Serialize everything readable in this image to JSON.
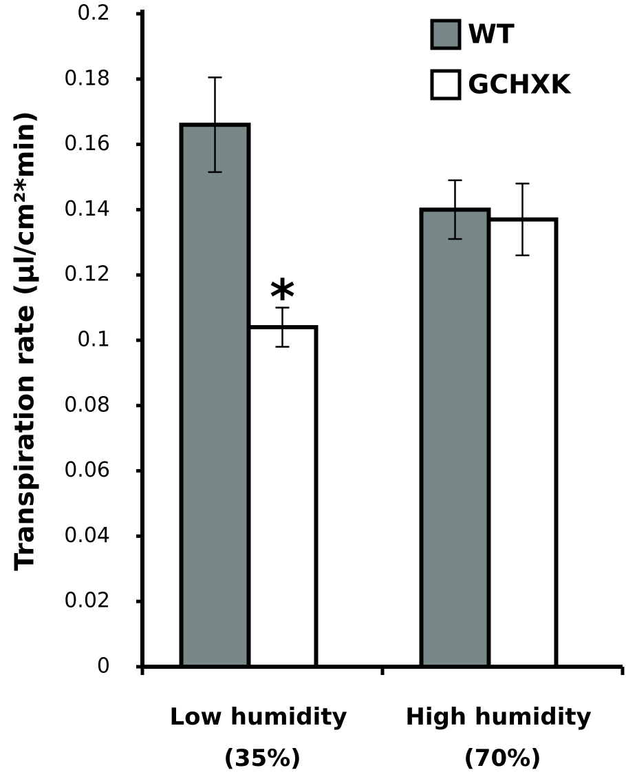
{
  "chart_data": {
    "type": "bar",
    "y_label": "Transpiration rate (μl/cm²*min)",
    "categories": [
      "Low humidity (35%)",
      "High humidity (70%)"
    ],
    "series": [
      {
        "name": "WT",
        "color": "#788888",
        "values": [
          0.166,
          0.14
        ],
        "errors": [
          0.0145,
          0.009
        ]
      },
      {
        "name": "GCHXK",
        "color": "#ffffff",
        "values": [
          0.104,
          0.137
        ],
        "errors": [
          0.006,
          0.011
        ]
      }
    ],
    "annotation": "*",
    "ylim": [
      0,
      0.2
    ],
    "yticks": [
      0,
      0.02,
      0.04,
      0.06,
      0.08,
      0.1,
      0.12,
      0.14,
      0.16,
      0.18,
      0.2
    ],
    "grid": false,
    "legend": "upper-right"
  }
}
